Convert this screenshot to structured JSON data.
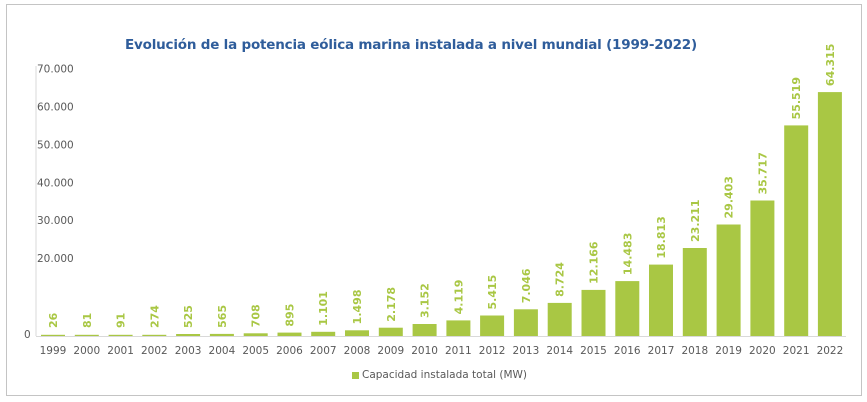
{
  "chart_data": {
    "type": "bar",
    "title": "Evolución de la potencia eólica marina instalada a nivel mundial (1999-2022)",
    "xlabel": "",
    "ylabel": "",
    "ylim": [
      0,
      70000
    ],
    "yticks": [
      {
        "value": 0,
        "label": "0"
      },
      {
        "value": 20000,
        "label": "20.000"
      },
      {
        "value": 30000,
        "label": "30.000"
      },
      {
        "value": 40000,
        "label": "40.000"
      },
      {
        "value": 50000,
        "label": "50.000"
      },
      {
        "value": 60000,
        "label": "60.000"
      },
      {
        "value": 70000,
        "label": "70.000"
      }
    ],
    "grid": false,
    "legend_position": "bottom",
    "categories": [
      "1999",
      "2000",
      "2001",
      "2002",
      "2003",
      "2004",
      "2005",
      "2006",
      "2007",
      "2008",
      "2009",
      "2010",
      "2011",
      "2012",
      "2013",
      "2014",
      "2015",
      "2016",
      "2017",
      "2018",
      "2019",
      "2020",
      "2021",
      "2022"
    ],
    "series": [
      {
        "name": "Capacidad instalada total (MW)",
        "color": "#a9c744",
        "values": [
          26,
          81,
          91,
          274,
          525,
          565,
          708,
          895,
          1101,
          1498,
          2178,
          3152,
          4119,
          5415,
          7046,
          8724,
          12166,
          14483,
          18813,
          23211,
          29403,
          35717,
          55519,
          64315
        ],
        "labels": [
          "26",
          "81",
          "91",
          "274",
          "525",
          "565",
          "708",
          "895",
          "1.101",
          "1.498",
          "2.178",
          "3.152",
          "4.119",
          "5.415",
          "7.046",
          "8.724",
          "12.166",
          "14.483",
          "18.813",
          "23.211",
          "29.403",
          "35.717",
          "55.519",
          "64.315"
        ]
      }
    ]
  },
  "colors": {
    "title": "#2f5d9b",
    "bar": "#a9c744",
    "axis_text": "#595959",
    "axis_line": "#d9d9d9"
  }
}
